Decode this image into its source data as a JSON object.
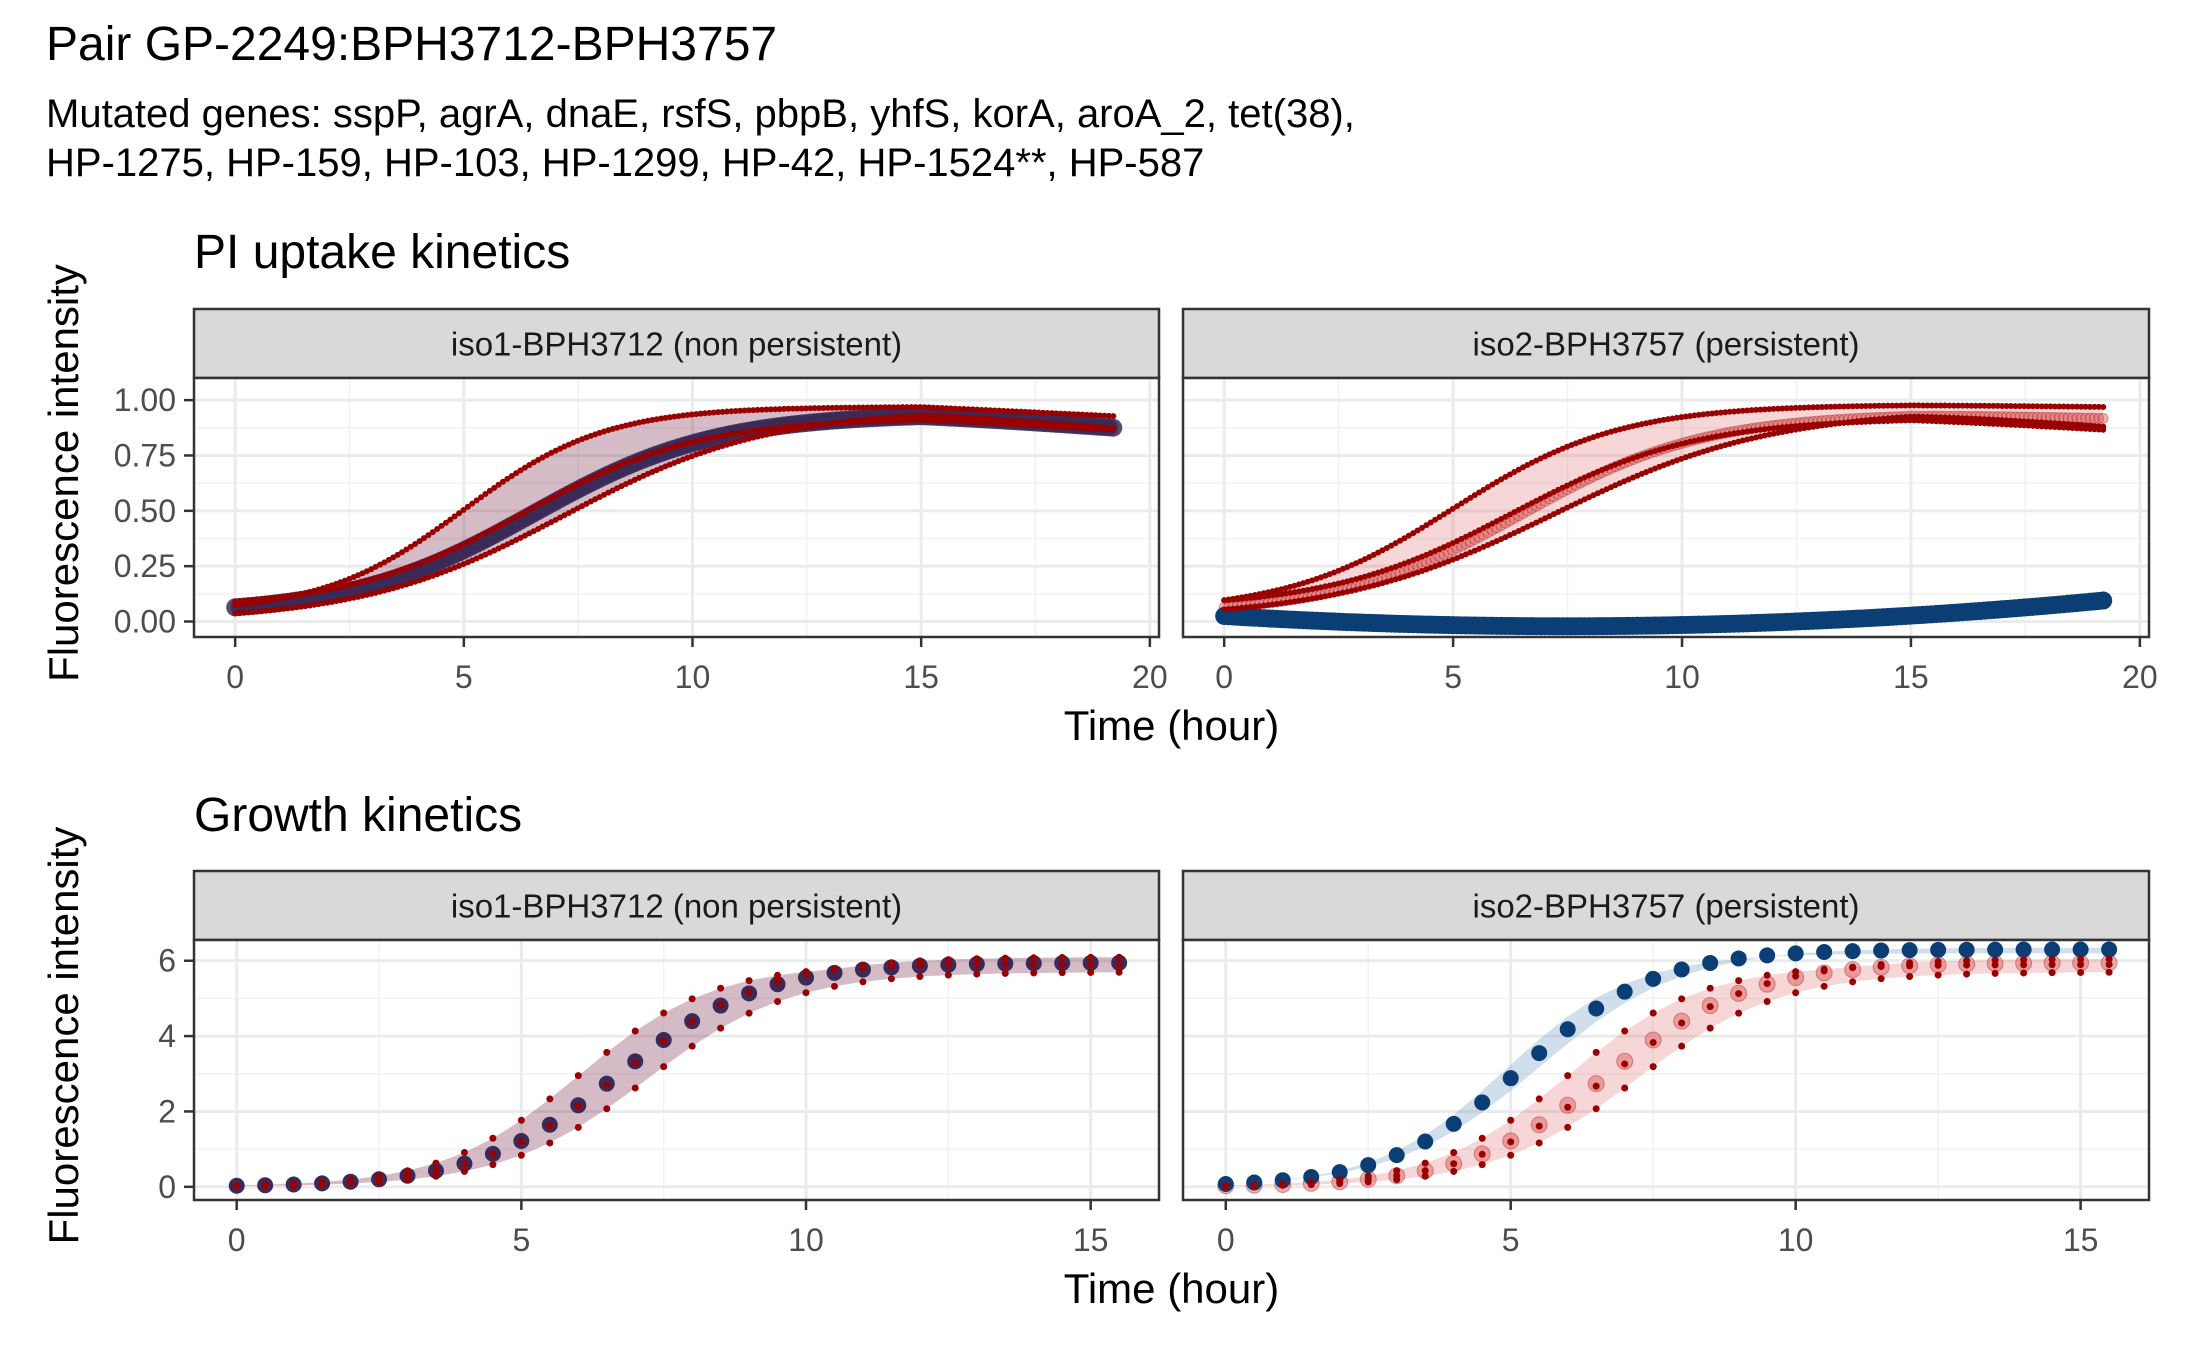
{
  "title": "Pair GP-2249:BPH3712-BPH3757",
  "subtitle_lines": [
    "Mutated genes: sspP, agrA, dnaE, rsfS, pbpB, yhfS, korA, aroA_2, tet(38),",
    "HP-1275, HP-159, HP-103, HP-1299, HP-42, HP-1524**, HP-587"
  ],
  "colors": {
    "iso1_point": "#3b2a58",
    "iso1_band": "#7a2b4e",
    "iso2_point": "#0b3e75",
    "iso2_band": "#7ba3c8",
    "replicate": "#990000",
    "replicate_band": "#e06a6a",
    "strip_bg": "#d9d9d9",
    "grid": "#ebebeb",
    "border": "#333333"
  },
  "chart_data": [
    {
      "type": "line",
      "title": "PI uptake kinetics",
      "xlabel": "Time (hour)",
      "ylabel": "Fluorescence intensity",
      "xlim": [
        -0.9,
        20.2
      ],
      "ylim": [
        -0.07,
        1.1
      ],
      "xticks": [
        0,
        5,
        10,
        15,
        20
      ],
      "yticks": [
        0.0,
        0.25,
        0.5,
        0.75,
        1.0
      ],
      "ytick_labels": [
        "0.00",
        "0.25",
        "0.50",
        "0.75",
        "1.00"
      ],
      "x_max": 19.2,
      "grid": true,
      "panels": [
        {
          "strip": "iso1-BPH3712 (non persistent)",
          "main": {
            "kind": "logistic",
            "A": 0.03,
            "B": 0.94,
            "k": 0.5,
            "x0": 6.5,
            "drop": 0.06
          },
          "main_style": "iso1",
          "replicates": [
            {
              "kind": "logistic",
              "A": 0.04,
              "B": 0.97,
              "k": 0.65,
              "x0": 5.0,
              "drop": 0.04
            },
            {
              "kind": "logistic",
              "A": 0.06,
              "B": 0.92,
              "k": 0.52,
              "x0": 6.3,
              "drop": 0.05
            },
            {
              "kind": "logistic",
              "A": 0.0,
              "B": 0.96,
              "k": 0.45,
              "x0": 7.2,
              "drop": 0.08
            }
          ]
        },
        {
          "strip": "iso2-BPH3757 (persistent)",
          "main": {
            "kind": "quadratic",
            "c0": 0.025,
            "c1": -0.0125,
            "c2": 0.00084
          },
          "main_style": "iso2",
          "center_line": {
            "kind": "logistic",
            "A": 0.03,
            "B": 0.94,
            "k": 0.5,
            "x0": 6.5,
            "drop": 0.02
          },
          "replicates": [
            {
              "kind": "logistic",
              "A": 0.04,
              "B": 0.98,
              "k": 0.55,
              "x0": 5.0,
              "drop": 0.01
            },
            {
              "kind": "logistic",
              "A": 0.06,
              "B": 0.92,
              "k": 0.5,
              "x0": 6.3,
              "drop": 0.05
            },
            {
              "kind": "logistic",
              "A": 0.01,
              "B": 0.96,
              "k": 0.42,
              "x0": 7.2,
              "drop": 0.07
            }
          ]
        }
      ]
    },
    {
      "type": "scatter",
      "title": "Growth kinetics",
      "xlabel": "Time (hour)",
      "ylabel": "Fluorescence intensity",
      "xlim": [
        -0.75,
        16.2
      ],
      "ylim": [
        -0.35,
        6.55
      ],
      "xticks": [
        0,
        5,
        10,
        15
      ],
      "yticks": [
        0,
        2,
        4,
        6
      ],
      "ytick_labels": [
        "0",
        "2",
        "4",
        "6"
      ],
      "x_max": 15.5,
      "x_step": 0.5,
      "grid": true,
      "panels": [
        {
          "strip": "iso1-BPH3712 (non persistent)",
          "main": {
            "kind": "logistic",
            "A": 0.0,
            "B": 5.95,
            "k": 0.8,
            "x0": 6.7,
            "drop": 0
          },
          "main_style": "iso1",
          "replicates": [
            {
              "kind": "logistic",
              "A": 0.0,
              "B": 5.9,
              "k": 0.85,
              "x0": 6.0,
              "drop": 0
            },
            {
              "kind": "logistic",
              "A": 0.0,
              "B": 6.1,
              "k": 0.78,
              "x0": 6.8,
              "drop": 0
            },
            {
              "kind": "logistic",
              "A": 0.0,
              "B": 5.7,
              "k": 0.8,
              "x0": 7.2,
              "drop": 0
            }
          ]
        },
        {
          "strip": "iso2-BPH3757 (persistent)",
          "main": {
            "kind": "logistic",
            "A": 0.0,
            "B": 6.3,
            "k": 0.85,
            "x0": 5.2,
            "drop": 0
          },
          "main_style": "iso2",
          "main_band": [
            {
              "kind": "logistic",
              "A": 0.0,
              "B": 6.2,
              "k": 0.9,
              "x0": 4.9,
              "drop": 0
            },
            {
              "kind": "logistic",
              "A": 0.0,
              "B": 6.35,
              "k": 0.8,
              "x0": 5.5,
              "drop": 0
            }
          ],
          "center_line": {
            "kind": "logistic",
            "A": 0.0,
            "B": 5.95,
            "k": 0.8,
            "x0": 6.7,
            "drop": 0
          },
          "replicates": [
            {
              "kind": "logistic",
              "A": 0.0,
              "B": 5.9,
              "k": 0.85,
              "x0": 6.0,
              "drop": 0
            },
            {
              "kind": "logistic",
              "A": 0.0,
              "B": 6.05,
              "k": 0.78,
              "x0": 6.8,
              "drop": 0
            },
            {
              "kind": "logistic",
              "A": 0.0,
              "B": 5.7,
              "k": 0.8,
              "x0": 7.2,
              "drop": 0
            }
          ]
        }
      ]
    }
  ]
}
